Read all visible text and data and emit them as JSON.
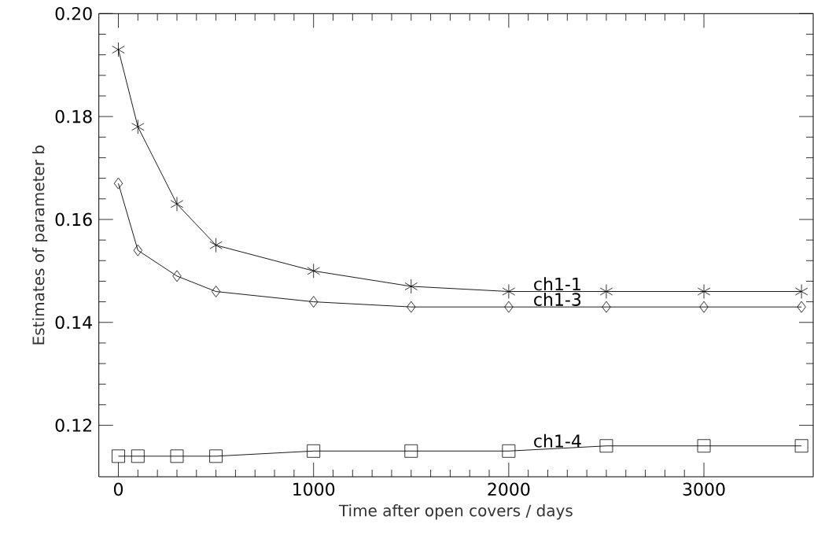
{
  "chart_data": {
    "type": "line",
    "xlabel": "Time after open covers / days",
    "ylabel": "Estimates of parameter b",
    "x": [
      0,
      100,
      300,
      500,
      1000,
      1500,
      2000,
      2500,
      3000,
      3500
    ],
    "series": [
      {
        "name": "ch1-1",
        "color": "#000000",
        "marker": "cross",
        "values": [
          0.193,
          0.178,
          0.163,
          0.155,
          0.15,
          0.147,
          0.146,
          0.146,
          0.146,
          0.146
        ]
      },
      {
        "name": "ch1-3",
        "color": "#000000",
        "marker": "diamond",
        "values": [
          0.167,
          0.154,
          0.149,
          0.146,
          0.144,
          0.143,
          0.143,
          0.143,
          0.143,
          0.143
        ]
      },
      {
        "name": "ch1-4",
        "color": "#000000",
        "marker": "square",
        "values": [
          0.114,
          0.114,
          0.114,
          0.114,
          0.115,
          0.115,
          0.115,
          0.116,
          0.116,
          0.116
        ]
      }
    ],
    "xlim": [
      -100,
      3560
    ],
    "ylim": [
      0.11,
      0.2
    ],
    "xticks": [
      0,
      1000,
      2000,
      3000
    ],
    "yticks": [
      0.12,
      0.14,
      0.16,
      0.18,
      {
        "value": 0.2,
        "label": "0.20"
      }
    ],
    "grid": false,
    "line_style": "solid"
  }
}
